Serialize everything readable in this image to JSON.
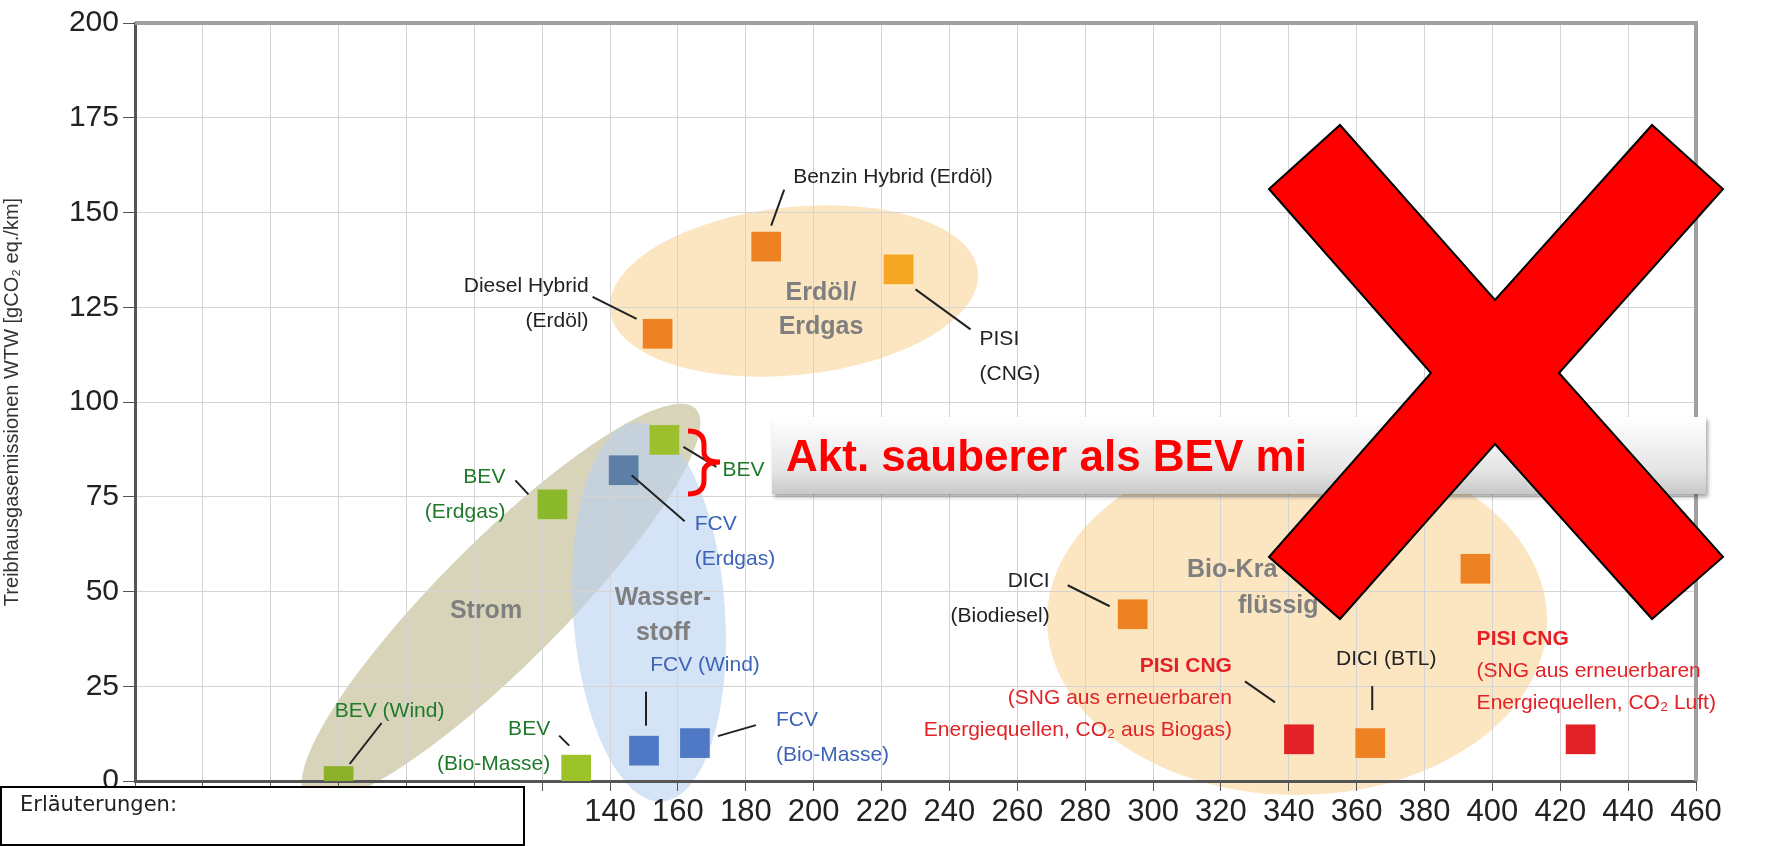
{
  "chart_data": {
    "type": "scatter",
    "ylabel": "Treibhausgasemissionen WTW [gCO₂ eq./km]",
    "xlim": [
      0,
      460
    ],
    "xticks": [
      {
        "value": 0,
        "label": null
      },
      {
        "value": 20,
        "label": null
      },
      {
        "value": 40,
        "label": null
      },
      {
        "value": 60,
        "label": null
      },
      {
        "value": 80,
        "label": null
      },
      {
        "value": 100,
        "label": null
      },
      {
        "value": 120,
        "label": null
      },
      140,
      160,
      180,
      200,
      220,
      240,
      260,
      280,
      300,
      320,
      340,
      360,
      380,
      400,
      420,
      440,
      460
    ],
    "ylim": [
      0,
      200
    ],
    "yticks": [
      0,
      25,
      50,
      75,
      100,
      125,
      150,
      175,
      200
    ],
    "grid": true,
    "legend": false,
    "marker": "square",
    "series": [
      {
        "name": "Diesel Hybrid\n(Erdöl)",
        "color": "#ee8122",
        "x": [
          154
        ],
        "values": [
          118
        ]
      },
      {
        "name": "Benzin Hybrid (Erdöl)",
        "color": "#ee8122",
        "x": [
          186
        ],
        "values": [
          141
        ]
      },
      {
        "name": "PISI\n(CNG)",
        "color": "#f5a623",
        "x": [
          225
        ],
        "values": [
          135
        ]
      },
      {
        "name": "BEV\n(Erdgas)",
        "color": "#8cb82b",
        "x": [
          123
        ],
        "values": [
          73
        ]
      },
      {
        "name": "BEV",
        "color": "#9bbf2d",
        "x": [
          156
        ],
        "values": [
          90
        ]
      },
      {
        "name": "FCV\n(Erdgas)",
        "color": "#5d7fa6",
        "x": [
          144
        ],
        "values": [
          82
        ]
      },
      {
        "name": "BEV\n(Bio-Masse)",
        "color": "#9cc42a",
        "x": [
          130
        ],
        "values": [
          3
        ]
      },
      {
        "name": "BEV (Wind)",
        "color": "#8cb02a",
        "x": [
          60
        ],
        "values": [
          0
        ]
      },
      {
        "name": "FCV (Wind)",
        "color": "#4f79c4",
        "x": [
          150
        ],
        "values": [
          8
        ]
      },
      {
        "name": "FCV\n(Bio-Masse)",
        "color": "#4f79c4",
        "x": [
          165
        ],
        "values": [
          10
        ]
      },
      {
        "name": "DICI\n(Biodiesel)",
        "color": "#ee8122",
        "x": [
          294
        ],
        "values": [
          44
        ]
      },
      {
        "name": "PISI CNG\n(SNG aus erneuerbaren\nEnergiequellen, CO₂ aus Biogas)",
        "color": "#e32227",
        "x": [
          343
        ],
        "values": [
          11
        ]
      },
      {
        "name": "DICI (BTL)",
        "color": "#ee8122",
        "x": [
          364
        ],
        "values": [
          10
        ]
      },
      {
        "color": "#ee8122",
        "x": [
          395
        ],
        "values": [
          56
        ]
      },
      {
        "name": "PISI CNG\n(SNG aus erneuerbaren\nEnergiequellen, CO₂ Luft)",
        "color": "#e32227",
        "x": [
          426
        ],
        "values": [
          11
        ]
      }
    ],
    "annotations": [
      "Erdöl/\nErdgas",
      "Strom",
      "Wasser-\nstoff",
      "Bio-Kra\nflüssig",
      "Akt. sauberer als BEV mi",
      "Erläuterungen:"
    ]
  }
}
